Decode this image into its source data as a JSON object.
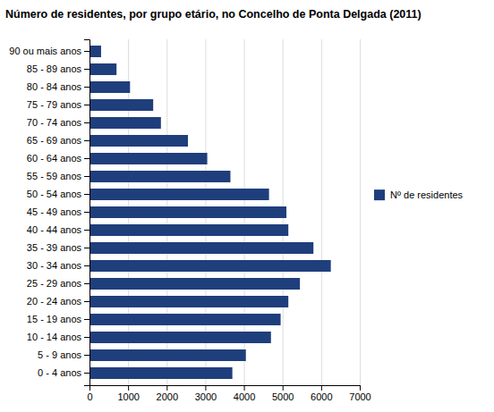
{
  "chart_data": {
    "type": "bar",
    "orientation": "horizontal",
    "title": "Número de residentes, por grupo etário, no Concelho de Ponta Delgada (2011)",
    "categories": [
      "90 ou mais anos",
      "85 - 89 anos",
      "80 - 84 anos",
      "75 - 79 anos",
      "70 - 74 anos",
      "65 - 69 anos",
      "60 - 64 anos",
      "55 - 59 anos",
      "50 - 54 anos",
      "45 - 49 anos",
      "40 - 44 anos",
      "35 - 39 anos",
      "30 - 34 anos",
      "25 - 29 anos",
      "20 - 24 anos",
      "15 - 19 anos",
      "10 - 14 anos",
      "5 - 9 anos",
      "0 - 4 anos"
    ],
    "series": [
      {
        "name": "Nº de residentes",
        "color": "#1F3E7C",
        "values": [
          300,
          700,
          1050,
          1650,
          1850,
          2550,
          3050,
          3650,
          4650,
          5100,
          5150,
          5800,
          6250,
          5450,
          5150,
          4950,
          4700,
          4050,
          3700
        ]
      }
    ],
    "xlim": [
      0,
      7000
    ],
    "xticks": [
      0,
      1000,
      2000,
      3000,
      4000,
      5000,
      6000,
      7000
    ],
    "grid": true,
    "legend": "right"
  }
}
